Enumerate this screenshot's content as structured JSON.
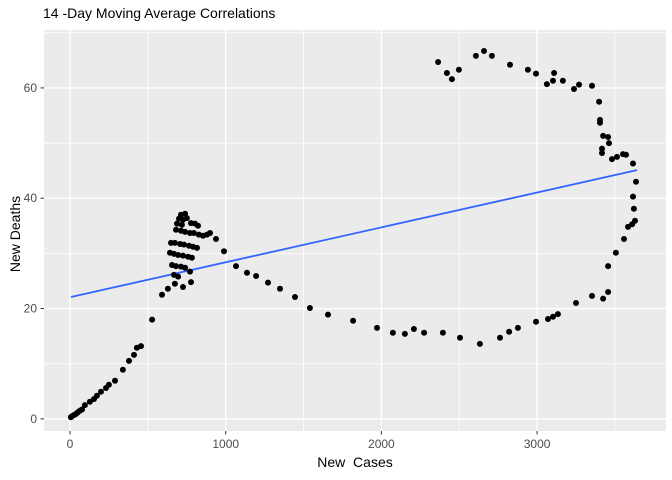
{
  "chart_data": {
    "type": "scatter",
    "title": "14 -Day Moving Average Correlations",
    "xlabel": "New  Cases",
    "ylabel": "New Deaths",
    "x_ticks": [
      0,
      1000,
      2000,
      3000
    ],
    "x_tick_labels": [
      "0",
      "1000",
      "2000",
      "3000"
    ],
    "x_minor_ticks": [
      500,
      1500,
      2500,
      3500
    ],
    "y_ticks": [
      0,
      20,
      40,
      60
    ],
    "y_tick_labels": [
      "0",
      "20",
      "40",
      "60"
    ],
    "y_minor_ticks": [
      10,
      30,
      50,
      70
    ],
    "xlim": [
      -167,
      3828
    ],
    "ylim": [
      -2.2,
      70.5
    ],
    "grid": "on",
    "legend": "none",
    "trend_line": {
      "type": "linear",
      "x1": 6,
      "y1": 22.1,
      "x2": 3642,
      "y2": 45.1
    },
    "colors": {
      "figure_bg": "#FFFFFF",
      "panel_bg": "#EBEBEB",
      "grid": "#FFFFFF",
      "point": "#000000",
      "trend": "#3366FF",
      "tick_label": "#4D4D4D",
      "tick_mark": "#333333",
      "title": "#000000",
      "axis_title": "#000000"
    },
    "points": [
      [
        6,
        0.3
      ],
      [
        13,
        0.5
      ],
      [
        26,
        0.7
      ],
      [
        39,
        0.9
      ],
      [
        51,
        1.2
      ],
      [
        64,
        1.5
      ],
      [
        77,
        1.7
      ],
      [
        96,
        2.5
      ],
      [
        128,
        3.1
      ],
      [
        154,
        3.6
      ],
      [
        173,
        4.2
      ],
      [
        199,
        4.9
      ],
      [
        231,
        5.6
      ],
      [
        250,
        6.2
      ],
      [
        289,
        6.9
      ],
      [
        340,
        8.9
      ],
      [
        379,
        10.5
      ],
      [
        411,
        11.6
      ],
      [
        430,
        12.9
      ],
      [
        456,
        13.2
      ],
      [
        527,
        18.0
      ],
      [
        591,
        22.5
      ],
      [
        629,
        23.6
      ],
      [
        674,
        24.5
      ],
      [
        713,
        37.0
      ],
      [
        739,
        37.2
      ],
      [
        700,
        36.3
      ],
      [
        726,
        36.1
      ],
      [
        751,
        36.4
      ],
      [
        687,
        35.4
      ],
      [
        719,
        35.2
      ],
      [
        777,
        35.5
      ],
      [
        803,
        35.4
      ],
      [
        822,
        35.0
      ],
      [
        681,
        34.3
      ],
      [
        713,
        34.1
      ],
      [
        739,
        33.9
      ],
      [
        771,
        33.7
      ],
      [
        796,
        33.7
      ],
      [
        828,
        33.4
      ],
      [
        854,
        33.2
      ],
      [
        649,
        31.9
      ],
      [
        674,
        31.9
      ],
      [
        707,
        31.7
      ],
      [
        732,
        31.6
      ],
      [
        764,
        31.4
      ],
      [
        790,
        31.2
      ],
      [
        816,
        31.0
      ],
      [
        642,
        30.1
      ],
      [
        668,
        29.9
      ],
      [
        694,
        29.7
      ],
      [
        726,
        29.6
      ],
      [
        758,
        29.4
      ],
      [
        783,
        29.2
      ],
      [
        655,
        27.9
      ],
      [
        681,
        27.7
      ],
      [
        713,
        27.6
      ],
      [
        739,
        27.4
      ],
      [
        668,
        26.1
      ],
      [
        694,
        25.8
      ],
      [
        771,
        26.7
      ],
      [
        777,
        24.8
      ],
      [
        726,
        23.9
      ],
      [
        880,
        33.4
      ],
      [
        899,
        33.7
      ],
      [
        938,
        32.6
      ],
      [
        989,
        30.4
      ],
      [
        1066,
        27.7
      ],
      [
        1137,
        26.5
      ],
      [
        1195,
        25.9
      ],
      [
        1272,
        24.7
      ],
      [
        1349,
        23.6
      ],
      [
        1445,
        22.1
      ],
      [
        1541,
        20.1
      ],
      [
        1657,
        18.9
      ],
      [
        1818,
        17.8
      ],
      [
        1972,
        16.5
      ],
      [
        2074,
        15.6
      ],
      [
        2151,
        15.4
      ],
      [
        2209,
        16.3
      ],
      [
        2274,
        15.6
      ],
      [
        2395,
        15.6
      ],
      [
        2505,
        14.7
      ],
      [
        2633,
        13.6
      ],
      [
        2762,
        14.7
      ],
      [
        2820,
        15.8
      ],
      [
        2877,
        16.5
      ],
      [
        2993,
        17.6
      ],
      [
        3070,
        18.1
      ],
      [
        3102,
        18.5
      ],
      [
        3134,
        19.0
      ],
      [
        3250,
        21.0
      ],
      [
        3353,
        22.3
      ],
      [
        3424,
        21.8
      ],
      [
        3456,
        23.0
      ],
      [
        3456,
        27.7
      ],
      [
        3506,
        30.1
      ],
      [
        3558,
        32.6
      ],
      [
        3584,
        34.8
      ],
      [
        3610,
        35.3
      ],
      [
        3629,
        35.9
      ],
      [
        3622,
        38.1
      ],
      [
        3616,
        40.3
      ],
      [
        3635,
        43.0
      ],
      [
        3616,
        46.3
      ],
      [
        3571,
        47.9
      ],
      [
        3552,
        48.0
      ],
      [
        3513,
        47.5
      ],
      [
        3481,
        47.1
      ],
      [
        3462,
        50.0
      ],
      [
        3456,
        51.1
      ],
      [
        3424,
        51.3
      ],
      [
        3417,
        49.0
      ],
      [
        3417,
        48.2
      ],
      [
        3404,
        53.7
      ],
      [
        2364,
        64.7
      ],
      [
        2421,
        62.7
      ],
      [
        2453,
        61.6
      ],
      [
        2498,
        63.3
      ],
      [
        2607,
        65.8
      ],
      [
        2659,
        66.7
      ],
      [
        2710,
        65.8
      ],
      [
        2826,
        64.2
      ],
      [
        2941,
        63.3
      ],
      [
        2993,
        62.6
      ],
      [
        3063,
        60.7
      ],
      [
        3102,
        61.3
      ],
      [
        3109,
        62.7
      ],
      [
        3166,
        61.3
      ],
      [
        3237,
        59.8
      ],
      [
        3269,
        60.6
      ],
      [
        3353,
        60.4
      ],
      [
        3398,
        57.5
      ],
      [
        3404,
        54.2
      ]
    ]
  }
}
